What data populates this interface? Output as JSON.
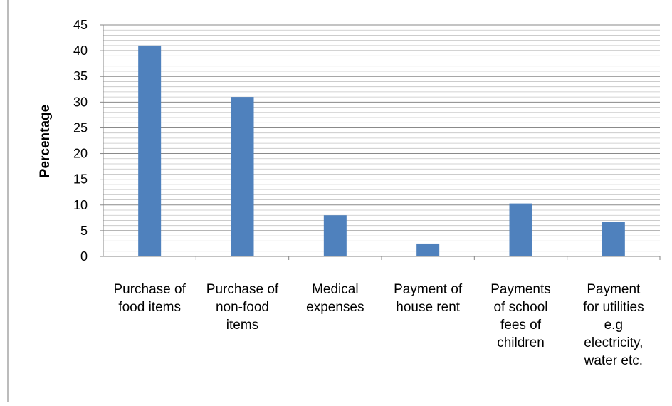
{
  "chart_data": {
    "type": "bar",
    "title": "",
    "xlabel": "",
    "ylabel": "Percentage",
    "ylim": [
      0,
      45
    ],
    "ytick_step": 5,
    "yticks": [
      "0",
      "5",
      "10",
      "15",
      "20",
      "25",
      "30",
      "35",
      "40",
      "45"
    ],
    "grid": true,
    "legend": "none",
    "categories": [
      [
        "Purchase of",
        "food items"
      ],
      [
        "Purchase of",
        "non-food",
        "items"
      ],
      [
        "Medical",
        "expenses"
      ],
      [
        "Payment of",
        "house rent"
      ],
      [
        "Payments",
        "of school",
        "fees of",
        "children"
      ],
      [
        "Payment",
        "for utilities",
        "e.g",
        "electricity,",
        "water etc."
      ]
    ],
    "values": [
      41,
      31,
      8,
      2.5,
      10.3,
      6.7
    ],
    "bar_color": "#4f81bd",
    "grid_color": "#8c8c8c"
  }
}
